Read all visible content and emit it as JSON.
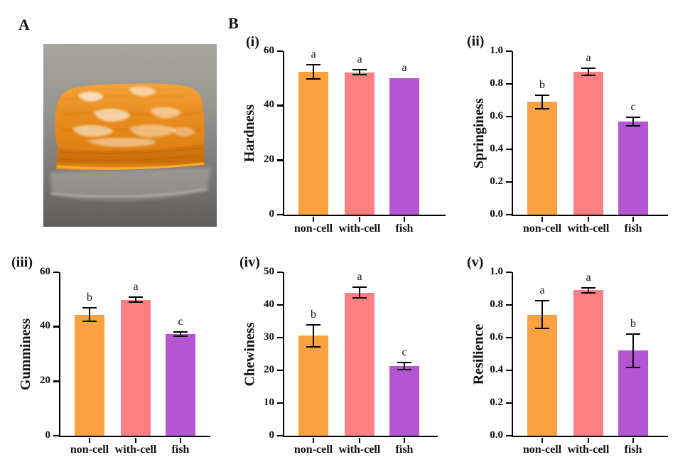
{
  "figure": {
    "panel_a_label": "A",
    "panel_b_label": "B",
    "bar_colors": [
      "#FBA240",
      "#FC8082",
      "#B455D4"
    ],
    "photo_subject": "orange gel sample slab on gray speckled surface"
  },
  "chart_data": [
    {
      "id": "i",
      "panel_label": "(i)",
      "type": "bar",
      "ylabel": "Hardness",
      "xlabel": "",
      "categories": [
        "non-cell",
        "with-cell",
        "fish"
      ],
      "values": [
        52.5,
        52.3,
        50.0
      ],
      "errors": [
        2.6,
        0.8,
        0
      ],
      "sig_letters": [
        "a",
        "a",
        "a"
      ],
      "ylim": [
        0,
        60
      ],
      "ytick_labels": [
        "0",
        "20",
        "40",
        "60"
      ],
      "grid": false,
      "legend": "none"
    },
    {
      "id": "ii",
      "panel_label": "(ii)",
      "type": "bar",
      "ylabel": "Springiness",
      "xlabel": "",
      "categories": [
        "non-cell",
        "with-cell",
        "fish"
      ],
      "values": [
        0.69,
        0.875,
        0.57
      ],
      "errors": [
        0.042,
        0.022,
        0.027
      ],
      "sig_letters": [
        "b",
        "a",
        "c"
      ],
      "ylim": [
        0,
        1.0
      ],
      "ytick_labels": [
        "0.0",
        "0.2",
        "0.4",
        "0.6",
        "0.8",
        "1.0"
      ],
      "grid": false,
      "legend": "none"
    },
    {
      "id": "iii",
      "panel_label": "(iii)",
      "type": "bar",
      "ylabel": "Gumminess",
      "xlabel": "",
      "categories": [
        "non-cell",
        "with-cell",
        "fish"
      ],
      "values": [
        44.4,
        49.9,
        37.4
      ],
      "errors": [
        2.5,
        0.9,
        0.8
      ],
      "sig_letters": [
        "b",
        "a",
        "c"
      ],
      "ylim": [
        0,
        60
      ],
      "ytick_labels": [
        "0",
        "20",
        "40",
        "60"
      ],
      "grid": false,
      "legend": "none"
    },
    {
      "id": "iv",
      "panel_label": "(iv)",
      "type": "bar",
      "ylabel": "Chewiness",
      "xlabel": "",
      "categories": [
        "non-cell",
        "with-cell",
        "fish"
      ],
      "values": [
        30.6,
        43.8,
        21.3
      ],
      "errors": [
        3.4,
        1.7,
        1.0
      ],
      "sig_letters": [
        "b",
        "a",
        "c"
      ],
      "ylim": [
        0,
        50
      ],
      "ytick_labels": [
        "0",
        "10",
        "20",
        "30",
        "40",
        "50"
      ],
      "grid": false,
      "legend": "none"
    },
    {
      "id": "v",
      "panel_label": "(v)",
      "type": "bar",
      "ylabel": "Resilience",
      "xlabel": "",
      "categories": [
        "non-cell",
        "with-cell",
        "fish"
      ],
      "values": [
        0.74,
        0.89,
        0.52
      ],
      "errors": [
        0.085,
        0.015,
        0.102
      ],
      "sig_letters": [
        "a",
        "a",
        "b"
      ],
      "ylim": [
        0,
        1.0
      ],
      "ytick_labels": [
        "0.0",
        "0.2",
        "0.4",
        "0.6",
        "0.8",
        "1.0"
      ],
      "grid": false,
      "legend": "none"
    }
  ]
}
